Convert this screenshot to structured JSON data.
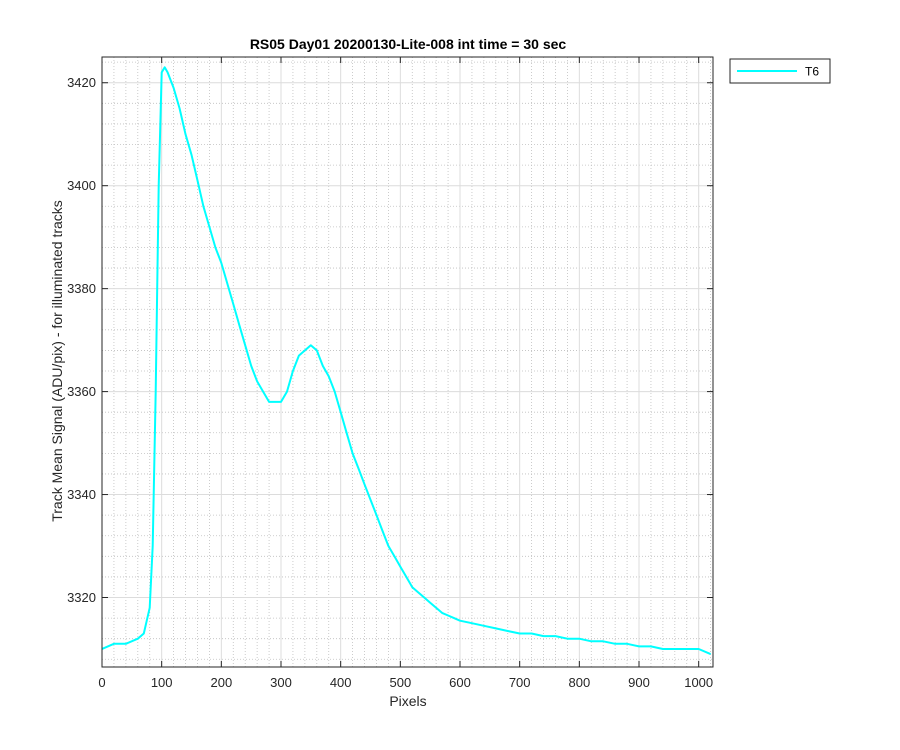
{
  "chart_data": {
    "type": "line",
    "title": "RS05 Day01 20200130-Lite-008 int time = 30 sec",
    "xlabel": "Pixels",
    "ylabel": "Track Mean Signal (ADU/pix) - for illuminated tracks",
    "xlim": [
      0,
      1024
    ],
    "ylim": [
      3306.5,
      3425
    ],
    "xticks": [
      0,
      100,
      200,
      300,
      400,
      500,
      600,
      700,
      800,
      900,
      1000
    ],
    "yticks": [
      3320,
      3340,
      3360,
      3380,
      3400,
      3420
    ],
    "xtick_labels": [
      "0",
      "100",
      "200",
      "300",
      "400",
      "500",
      "600",
      "700",
      "800",
      "900",
      "1000"
    ],
    "ytick_labels": [
      "3320",
      "3340",
      "3360",
      "3380",
      "3400",
      "3420"
    ],
    "grid": "major solid, minor dotted",
    "legend_position": "outside-top-right",
    "series": [
      {
        "name": "T6",
        "color": "#00ffff",
        "x": [
          0,
          20,
          40,
          60,
          70,
          80,
          85,
          90,
          95,
          100,
          105,
          110,
          120,
          130,
          140,
          150,
          160,
          170,
          180,
          190,
          200,
          210,
          220,
          230,
          240,
          250,
          260,
          270,
          280,
          290,
          300,
          310,
          320,
          330,
          340,
          350,
          360,
          370,
          380,
          390,
          400,
          410,
          420,
          430,
          440,
          450,
          460,
          470,
          480,
          490,
          500,
          510,
          520,
          530,
          540,
          550,
          560,
          570,
          580,
          590,
          600,
          620,
          640,
          660,
          680,
          700,
          720,
          740,
          760,
          780,
          800,
          820,
          840,
          860,
          880,
          900,
          920,
          940,
          960,
          980,
          1000,
          1020
        ],
        "y": [
          3310,
          3311,
          3311,
          3312,
          3313,
          3318,
          3330,
          3360,
          3400,
          3422,
          3423,
          3422,
          3419,
          3415,
          3410,
          3406,
          3401,
          3396,
          3392,
          3388,
          3385,
          3381,
          3377,
          3373,
          3369,
          3365,
          3362,
          3360,
          3358,
          3358,
          3358,
          3360,
          3364,
          3367,
          3368,
          3369,
          3368,
          3365,
          3363,
          3360,
          3356,
          3352,
          3348,
          3345,
          3342,
          3339,
          3336,
          3333,
          3330,
          3328,
          3326,
          3324,
          3322,
          3321,
          3320,
          3319,
          3318,
          3317,
          3316.5,
          3316,
          3315.5,
          3315,
          3314.5,
          3314,
          3313.5,
          3313,
          3313,
          3312.5,
          3312.5,
          3312,
          3312,
          3311.5,
          3311.5,
          3311,
          3311,
          3310.5,
          3310.5,
          3310,
          3310,
          3310,
          3310,
          3309
        ]
      }
    ]
  }
}
